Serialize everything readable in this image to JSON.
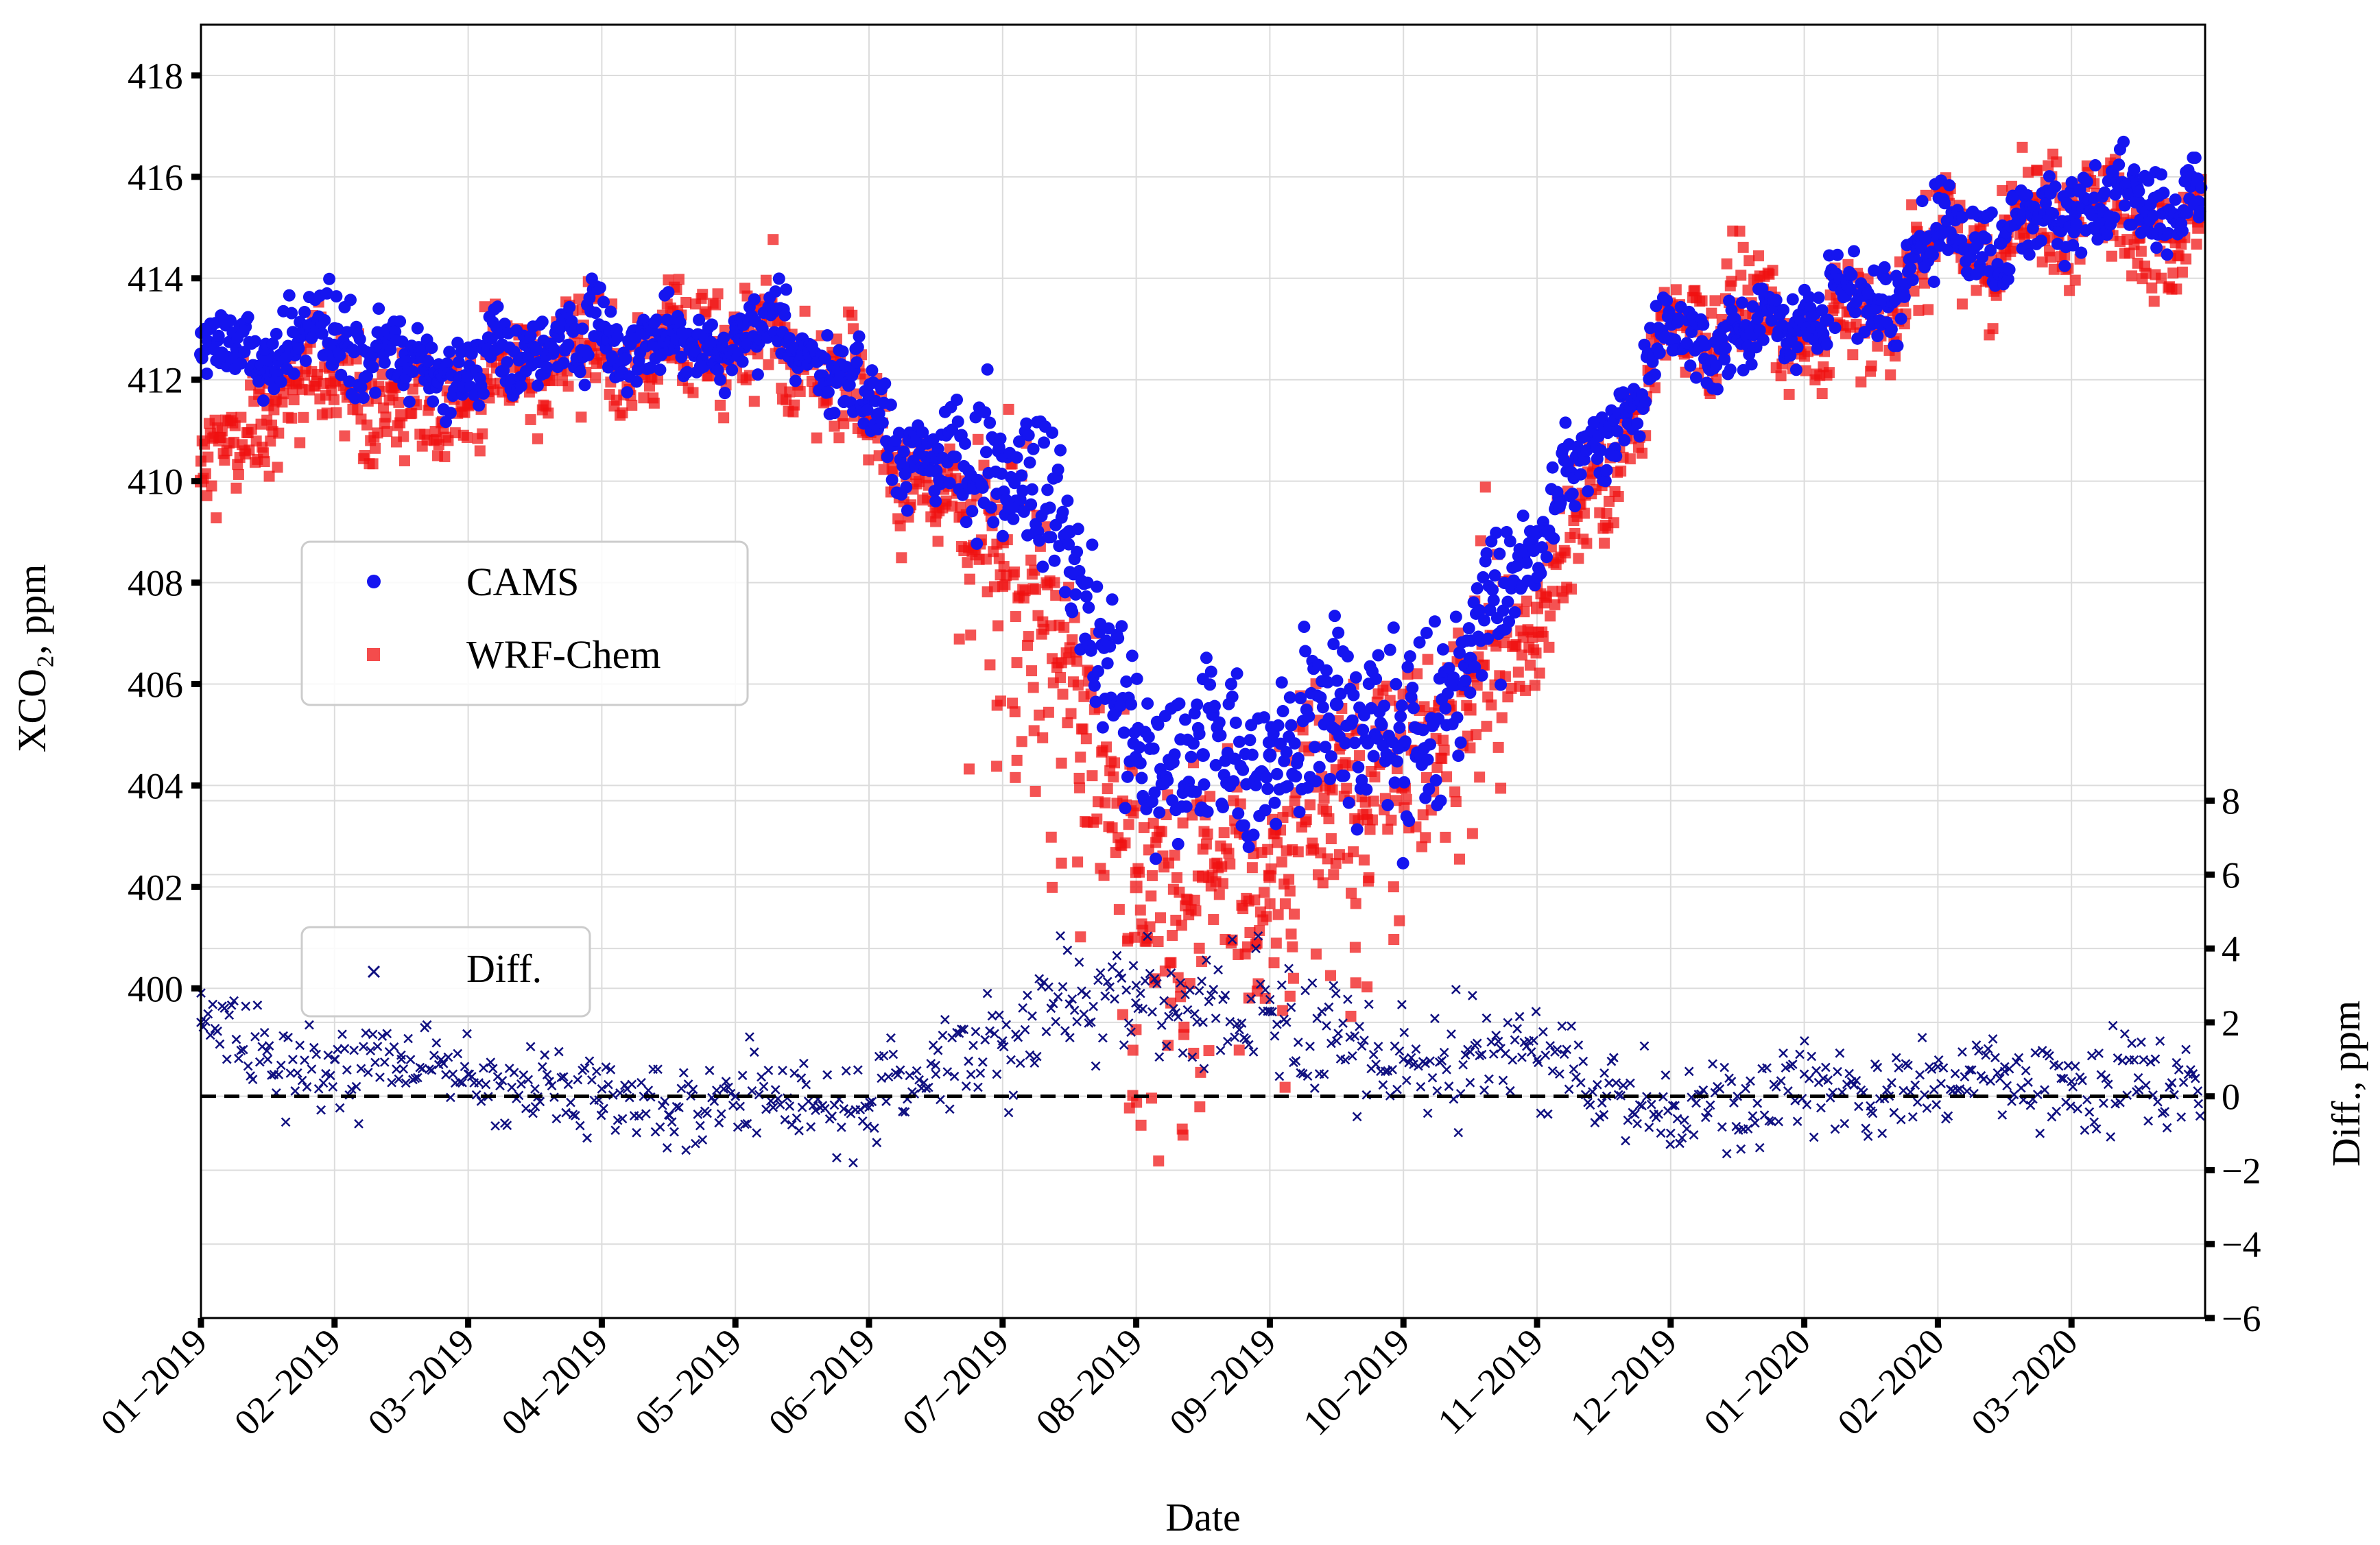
{
  "colors": {
    "cams": "#1515f0",
    "wrf": "#f01010",
    "diff": "#101080",
    "grid": "#dcdcdc"
  },
  "chart_data": {
    "type": "scatter",
    "xlabel": "Date",
    "ylabel_left": "XCO₂, ppm",
    "ylabel_right": "Diff., ppm",
    "x_range": [
      0,
      15
    ],
    "x_ticks": [
      "01−2019",
      "02−2019",
      "03−2019",
      "04−2019",
      "05−2019",
      "06−2019",
      "07−2019",
      "08−2019",
      "09−2019",
      "10−2019",
      "11−2019",
      "12−2019",
      "01−2020",
      "02−2020",
      "03−2020"
    ],
    "y_left": {
      "range": [
        393.5,
        419
      ],
      "ticks": [
        "400",
        "402",
        "404",
        "406",
        "408",
        "410",
        "412",
        "414",
        "416",
        "418"
      ]
    },
    "y_right": {
      "range": [
        -6,
        29
      ],
      "ticks": [
        "−6",
        "−4",
        "−2",
        "0",
        "2",
        "4",
        "6",
        "8"
      ]
    },
    "legends": {
      "top": [
        "CAMS",
        "WRF-Chem"
      ],
      "bottom": [
        "Diff."
      ]
    },
    "series": [
      {
        "name": "CAMS",
        "marker": "circle",
        "axis": "left",
        "x": [
          0.0,
          0.5,
          1.0,
          1.5,
          2.0,
          2.5,
          3.0,
          3.5,
          4.0,
          4.5,
          5.0,
          5.5,
          6.0,
          6.5,
          7.0,
          7.5,
          8.0,
          8.5,
          9.0,
          9.5,
          10.0,
          10.5,
          11.0,
          11.5,
          12.0,
          12.5,
          13.0,
          13.5,
          14.0,
          14.5,
          14.95
        ],
        "y": [
          412.5,
          412.5,
          413.0,
          412.3,
          412.1,
          412.6,
          412.9,
          412.6,
          412.9,
          412.8,
          411.6,
          410.2,
          410.5,
          409.0,
          404.5,
          404.6,
          404.6,
          405.6,
          404.8,
          406.5,
          409.0,
          411.0,
          412.8,
          412.8,
          413.4,
          413.6,
          414.8,
          414.8,
          415.4,
          415.5,
          415.5
        ]
      },
      {
        "name": "WRF-Chem",
        "marker": "square",
        "axis": "left",
        "x": [
          0.0,
          0.5,
          1.0,
          1.5,
          2.0,
          2.5,
          3.0,
          3.5,
          4.0,
          4.5,
          5.0,
          5.5,
          6.0,
          6.5,
          7.0,
          7.5,
          8.0,
          8.5,
          9.0,
          9.5,
          10.0,
          10.5,
          11.0,
          11.5,
          12.0,
          12.5,
          13.0,
          13.5,
          14.0,
          14.5,
          14.95
        ],
        "y": [
          410.0,
          411.5,
          412.0,
          411.3,
          411.5,
          412.5,
          412.5,
          412.5,
          412.8,
          412.5,
          411.3,
          409.5,
          408.8,
          406.5,
          402.0,
          402.2,
          402.2,
          404.3,
          404.0,
          405.5,
          407.5,
          410.0,
          413.0,
          413.5,
          412.8,
          413.3,
          414.8,
          414.6,
          415.5,
          414.8,
          415.0
        ]
      },
      {
        "name": "Diff.",
        "marker": "x",
        "axis": "right",
        "x": [
          0.0,
          0.5,
          1.0,
          1.5,
          2.0,
          2.5,
          3.0,
          3.5,
          4.0,
          4.5,
          5.0,
          5.5,
          6.0,
          6.5,
          7.0,
          7.5,
          8.0,
          8.5,
          9.0,
          9.5,
          10.0,
          10.5,
          11.0,
          11.5,
          12.0,
          12.5,
          13.0,
          13.5,
          14.0,
          14.5,
          14.95
        ],
        "y": [
          2.0,
          1.0,
          1.0,
          1.0,
          0.6,
          0.2,
          0.2,
          -0.5,
          0.0,
          -0.3,
          -0.3,
          0.6,
          1.5,
          2.5,
          3.0,
          2.0,
          2.3,
          1.5,
          1.0,
          1.2,
          1.0,
          -0.5,
          -1.0,
          0.0,
          0.6,
          -0.4,
          0.8,
          0.8,
          0.4,
          0.5,
          -0.2
        ]
      }
    ],
    "reference_line": {
      "axis": "right",
      "y": 0,
      "style": "dashed"
    }
  }
}
